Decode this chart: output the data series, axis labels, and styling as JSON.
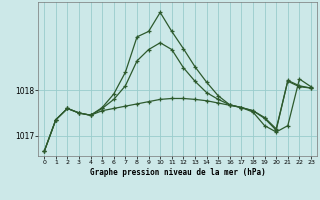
{
  "xlabel": "Graphe pression niveau de la mer (hPa)",
  "background_color": "#cce8e8",
  "grid_color": "#99cccc",
  "line_color": "#2d5a2d",
  "yticks": [
    1017,
    1018
  ],
  "ylim": [
    1016.55,
    1019.95
  ],
  "xlim": [
    -0.5,
    23.5
  ],
  "xticks": [
    0,
    1,
    2,
    3,
    4,
    5,
    6,
    7,
    8,
    9,
    10,
    11,
    12,
    13,
    14,
    15,
    16,
    17,
    18,
    19,
    20,
    21,
    22,
    23
  ],
  "series": [
    [
      1016.65,
      1017.35,
      1017.6,
      1017.5,
      1017.45,
      1017.55,
      1017.6,
      1017.65,
      1017.7,
      1017.75,
      1017.8,
      1017.82,
      1017.82,
      1017.8,
      1017.77,
      1017.72,
      1017.67,
      1017.62,
      1017.55,
      1017.4,
      1017.15,
      1018.2,
      1018.08,
      1018.05
    ],
    [
      1016.65,
      1017.35,
      1017.6,
      1017.5,
      1017.45,
      1017.6,
      1017.8,
      1018.1,
      1018.65,
      1018.9,
      1019.05,
      1018.9,
      1018.5,
      1018.2,
      1017.95,
      1017.8,
      1017.68,
      1017.62,
      1017.55,
      1017.38,
      1017.12,
      1018.22,
      1018.1,
      1018.05
    ],
    [
      1016.65,
      1017.35,
      1017.6,
      1017.5,
      1017.45,
      1017.62,
      1017.92,
      1018.4,
      1019.18,
      1019.3,
      1019.72,
      1019.3,
      1018.92,
      1018.52,
      1018.18,
      1017.88,
      1017.68,
      1017.62,
      1017.52,
      1017.22,
      1017.08,
      1017.22,
      1018.25,
      1018.08
    ]
  ]
}
